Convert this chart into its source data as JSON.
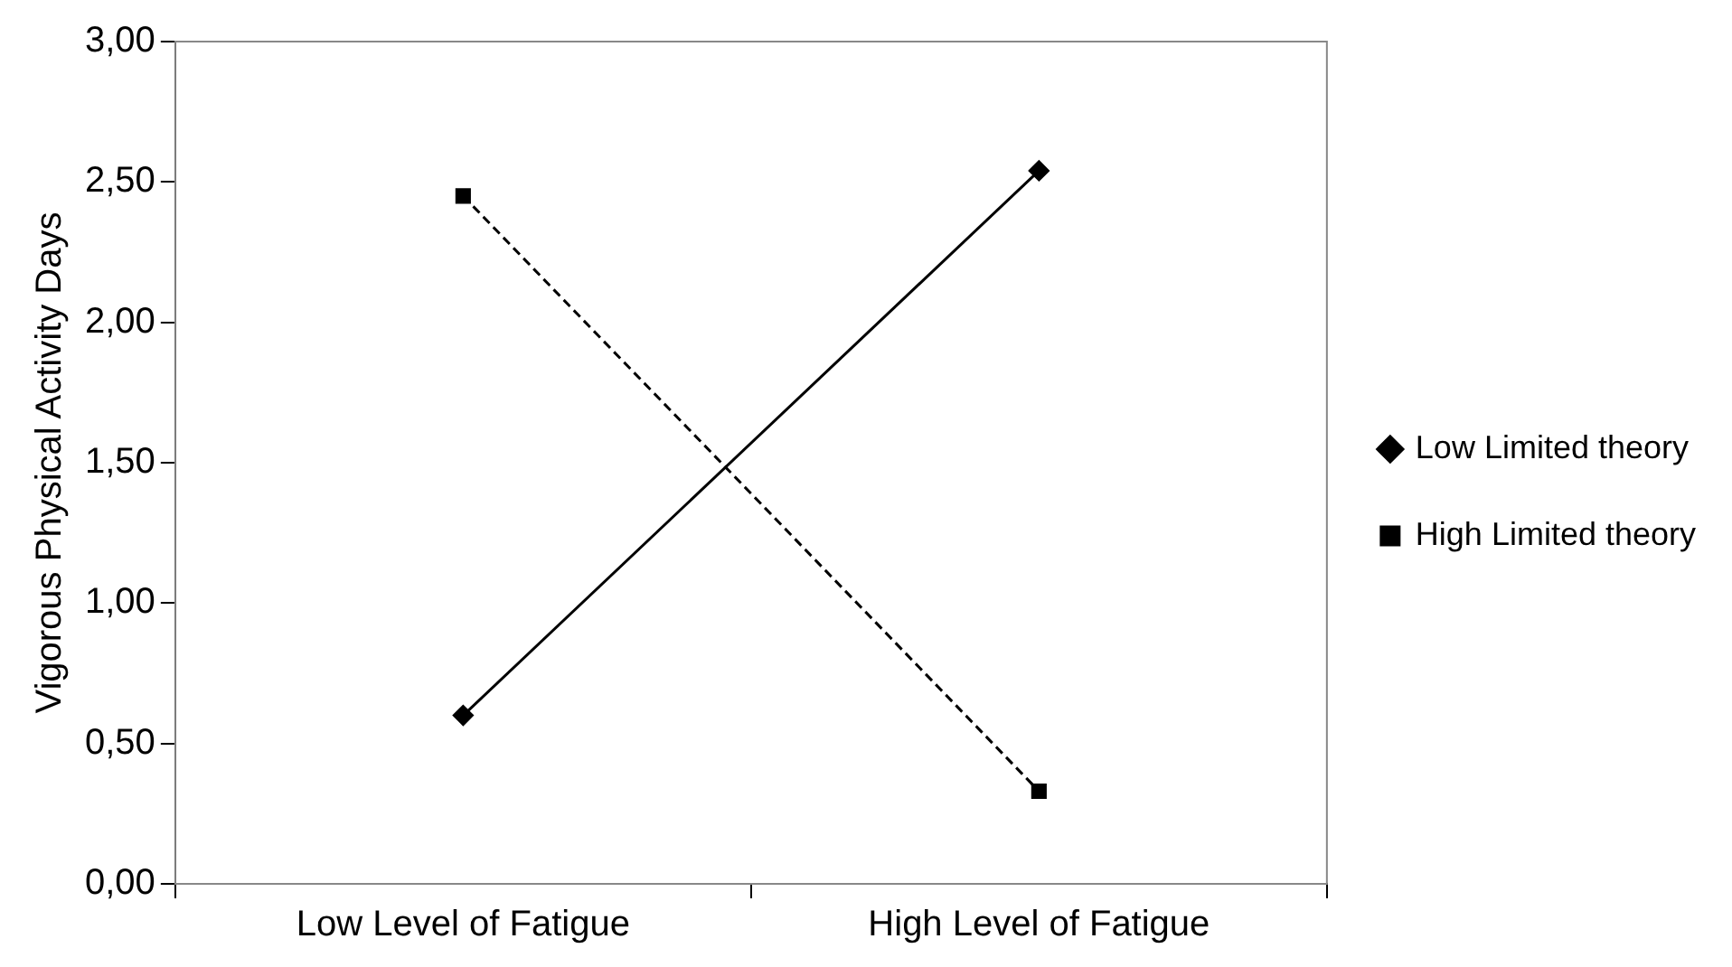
{
  "chart_data": {
    "type": "line",
    "ylabel": "Vigorous Physical Activity Days",
    "categories": [
      "Low Level of Fatigue",
      "High Level of Fatigue"
    ],
    "series": [
      {
        "name": "Low Limited theory",
        "color": "#000000",
        "values": [
          0.6,
          2.54
        ],
        "marker": "diamond",
        "line_style": "solid"
      },
      {
        "name": "High Limited theory",
        "color": "#000000",
        "values": [
          2.45,
          0.33
        ],
        "marker": "square",
        "line_style": "dashed"
      }
    ],
    "ylim": [
      0,
      3
    ],
    "yticks": [
      {
        "value": 0,
        "label": "0,00"
      },
      {
        "value": 0.5,
        "label": "0,50"
      },
      {
        "value": 1,
        "label": "1,00"
      },
      {
        "value": 1.5,
        "label": "1,50"
      },
      {
        "value": 2,
        "label": "2,00"
      },
      {
        "value": 2.5,
        "label": "2,50"
      },
      {
        "value": 3,
        "label": "3,00"
      }
    ],
    "grid": false,
    "legend": "right"
  }
}
